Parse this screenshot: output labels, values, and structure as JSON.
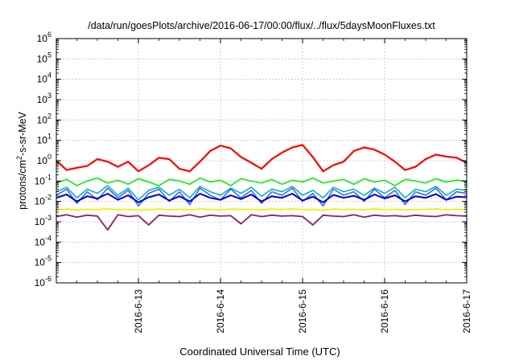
{
  "chart_data": {
    "type": "line",
    "title": "/data/run/goesPlots/archive/2016-06-17/00:00/flux/../flux/5daysMoonFluxes.txt",
    "xlabel": "Coordinated Universal Time (UTC)",
    "ylabel": {
      "base": "protons/cm",
      "sup": "2",
      "rest": "-s-sr-MeV"
    },
    "yscale": "log",
    "ylim": [
      1e-06,
      1000000.0
    ],
    "xlim": [
      "2016-06-12 00:00",
      "2016-06-17 00:00"
    ],
    "grid": true,
    "x_ticks": [
      "2016-6-13",
      "2016-6-14",
      "2016-6-15",
      "2016-6-16",
      "2016-6-17"
    ],
    "y_ticks": [
      {
        "base": "10",
        "exp": "6"
      },
      {
        "base": "10",
        "exp": "5"
      },
      {
        "base": "10",
        "exp": "4"
      },
      {
        "base": "10",
        "exp": "3"
      },
      {
        "base": "10",
        "exp": "2"
      },
      {
        "base": "10",
        "exp": "1"
      },
      {
        "base": "10",
        "exp": "0"
      },
      {
        "base": "10",
        "exp": "-1"
      },
      {
        "base": "10",
        "exp": "-2"
      },
      {
        "base": "10",
        "exp": "-3"
      },
      {
        "base": "10",
        "exp": "-4"
      },
      {
        "base": "10",
        "exp": "-5"
      },
      {
        "base": "10",
        "exp": "-6"
      }
    ],
    "x_hours": [
      0,
      3,
      6,
      9,
      12,
      15,
      18,
      21,
      24,
      27,
      30,
      33,
      36,
      39,
      42,
      45,
      48,
      51,
      54,
      57,
      60,
      63,
      66,
      69,
      72,
      75,
      78,
      81,
      84,
      87,
      90,
      93,
      96,
      99,
      102,
      105,
      108,
      111,
      114,
      117,
      120
    ],
    "series": [
      {
        "color": "#ff0000",
        "width": 2.2,
        "values": [
          1.0,
          0.35,
          0.45,
          0.55,
          1.2,
          0.9,
          0.5,
          0.9,
          0.3,
          0.6,
          1.4,
          1.2,
          0.4,
          0.3,
          0.9,
          3.0,
          5.5,
          4.0,
          1.5,
          0.8,
          0.4,
          1.2,
          2.5,
          4.5,
          6.0,
          1.5,
          0.3,
          0.6,
          0.9,
          3.0,
          4.5,
          3.5,
          2.0,
          0.9,
          0.35,
          0.5,
          1.2,
          2.0,
          1.6,
          1.4,
          0.8
        ]
      },
      {
        "color": "#00ee00",
        "width": 1.5,
        "values": [
          0.08,
          0.12,
          0.06,
          0.1,
          0.14,
          0.08,
          0.11,
          0.07,
          0.13,
          0.09,
          0.06,
          0.12,
          0.1,
          0.07,
          0.14,
          0.09,
          0.11,
          0.06,
          0.13,
          0.1,
          0.08,
          0.12,
          0.07,
          0.11,
          0.09,
          0.14,
          0.08,
          0.1,
          0.12,
          0.07,
          0.13,
          0.09,
          0.11,
          0.06,
          0.12,
          0.1,
          0.08,
          0.13,
          0.09,
          0.11,
          0.1
        ]
      },
      {
        "color": "#00b0b0",
        "width": 1.5,
        "values": [
          0.03,
          0.05,
          0.015,
          0.04,
          0.025,
          0.06,
          0.02,
          0.045,
          0.012,
          0.035,
          0.05,
          0.02,
          0.04,
          0.015,
          0.055,
          0.03,
          0.02,
          0.045,
          0.025,
          0.05,
          0.018,
          0.04,
          0.03,
          0.055,
          0.02,
          0.035,
          0.015,
          0.05,
          0.03,
          0.04,
          0.02,
          0.045,
          0.025,
          0.05,
          0.015,
          0.04,
          0.03,
          0.055,
          0.02,
          0.04,
          0.035
        ]
      },
      {
        "color": "#3060ff",
        "width": 1.5,
        "values": [
          0.02,
          0.04,
          0.008,
          0.03,
          0.012,
          0.045,
          0.015,
          0.035,
          0.006,
          0.025,
          0.04,
          0.01,
          0.03,
          0.007,
          0.045,
          0.02,
          0.012,
          0.04,
          0.015,
          0.035,
          0.008,
          0.03,
          0.02,
          0.045,
          0.01,
          0.025,
          0.006,
          0.04,
          0.02,
          0.03,
          0.01,
          0.04,
          0.015,
          0.035,
          0.007,
          0.03,
          0.02,
          0.045,
          0.012,
          0.03,
          0.025
        ]
      },
      {
        "color": "#0000cc",
        "width": 2.0,
        "values": [
          0.015,
          0.022,
          0.01,
          0.018,
          0.014,
          0.024,
          0.012,
          0.02,
          0.009,
          0.016,
          0.022,
          0.011,
          0.018,
          0.01,
          0.024,
          0.015,
          0.012,
          0.02,
          0.013,
          0.022,
          0.01,
          0.018,
          0.015,
          0.024,
          0.011,
          0.017,
          0.009,
          0.021,
          0.015,
          0.019,
          0.012,
          0.022,
          0.014,
          0.02,
          0.01,
          0.018,
          0.015,
          0.023,
          0.012,
          0.017,
          0.016
        ]
      },
      {
        "color": "#f0f000",
        "width": 1.8,
        "values": [
          0.004,
          0.0042,
          0.0038,
          0.0041,
          0.004,
          0.0043,
          0.0039,
          0.0041,
          0.0037,
          0.004,
          0.0042,
          0.0039,
          0.0041,
          0.0038,
          0.0043,
          0.004,
          0.0039,
          0.0042,
          0.004,
          0.0041,
          0.0038,
          0.0042,
          0.004,
          0.0043,
          0.0039,
          0.0041,
          0.0037,
          0.0042,
          0.004,
          0.0041,
          0.0039,
          0.0042,
          0.004,
          0.0041,
          0.0038,
          0.004,
          0.0041,
          0.0042,
          0.0039,
          0.0041,
          0.004
        ]
      },
      {
        "color": "#8b2060",
        "width": 1.8,
        "values": [
          0.0018,
          0.0022,
          0.0017,
          0.0021,
          0.0019,
          0.0004,
          0.0022,
          0.0018,
          0.002,
          0.0007,
          0.0021,
          0.0019,
          0.0018,
          0.0022,
          0.0017,
          0.0021,
          0.0019,
          0.002,
          0.0008,
          0.0022,
          0.0018,
          0.0021,
          0.0019,
          0.002,
          0.0018,
          0.0007,
          0.0021,
          0.0019,
          0.0018,
          0.0022,
          0.0017,
          0.0021,
          0.0019,
          0.002,
          0.0018,
          0.0021,
          0.0019,
          0.0018,
          0.0022,
          0.002,
          0.0019
        ]
      }
    ]
  }
}
